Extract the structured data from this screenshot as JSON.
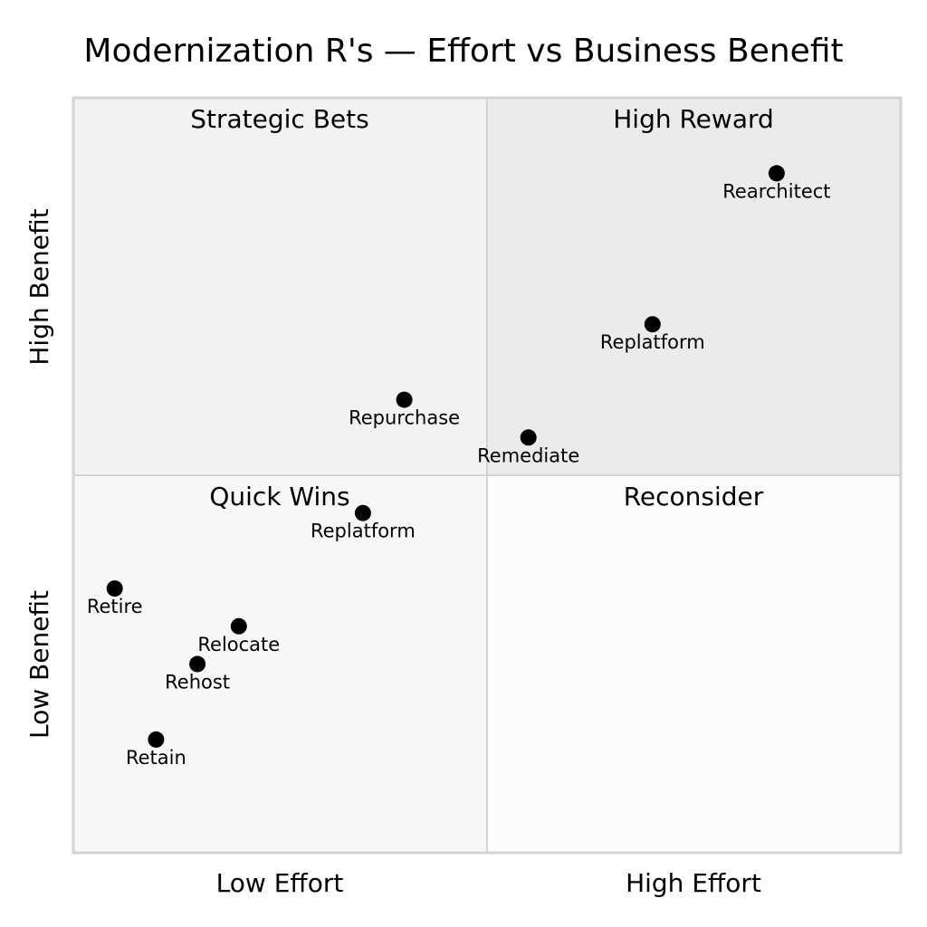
{
  "chart_data": {
    "type": "scatter",
    "title": "Modernization R's — Effort vs Business Benefit",
    "x_axis": {
      "low_label": "Low Effort",
      "high_label": "High Effort",
      "range": [
        0,
        1
      ]
    },
    "y_axis": {
      "low_label": "Low Benefit",
      "high_label": "High Benefit",
      "range": [
        0,
        1
      ]
    },
    "quadrants": {
      "top_left": "Strategic Bets",
      "top_right": "High Reward",
      "bottom_left": "Quick Wins",
      "bottom_right": "Reconsider"
    },
    "quadrant_colors": {
      "top_left": "#f2f2f2",
      "top_right": "#ebebeb",
      "bottom_left": "#f7f7f7",
      "bottom_right": "#fcfcfc",
      "border": "#d4d4d4"
    },
    "grid": false,
    "points": [
      {
        "label": "Rearchitect",
        "x": 0.85,
        "y": 0.9
      },
      {
        "label": "Replatform",
        "x": 0.7,
        "y": 0.7
      },
      {
        "label": "Repurchase",
        "x": 0.4,
        "y": 0.6
      },
      {
        "label": "Remediate",
        "x": 0.55,
        "y": 0.55
      },
      {
        "label": "Replatform",
        "x": 0.35,
        "y": 0.45
      },
      {
        "label": "Retire",
        "x": 0.05,
        "y": 0.35
      },
      {
        "label": "Relocate",
        "x": 0.2,
        "y": 0.3
      },
      {
        "label": "Rehost",
        "x": 0.15,
        "y": 0.25
      },
      {
        "label": "Retain",
        "x": 0.1,
        "y": 0.15
      }
    ]
  }
}
